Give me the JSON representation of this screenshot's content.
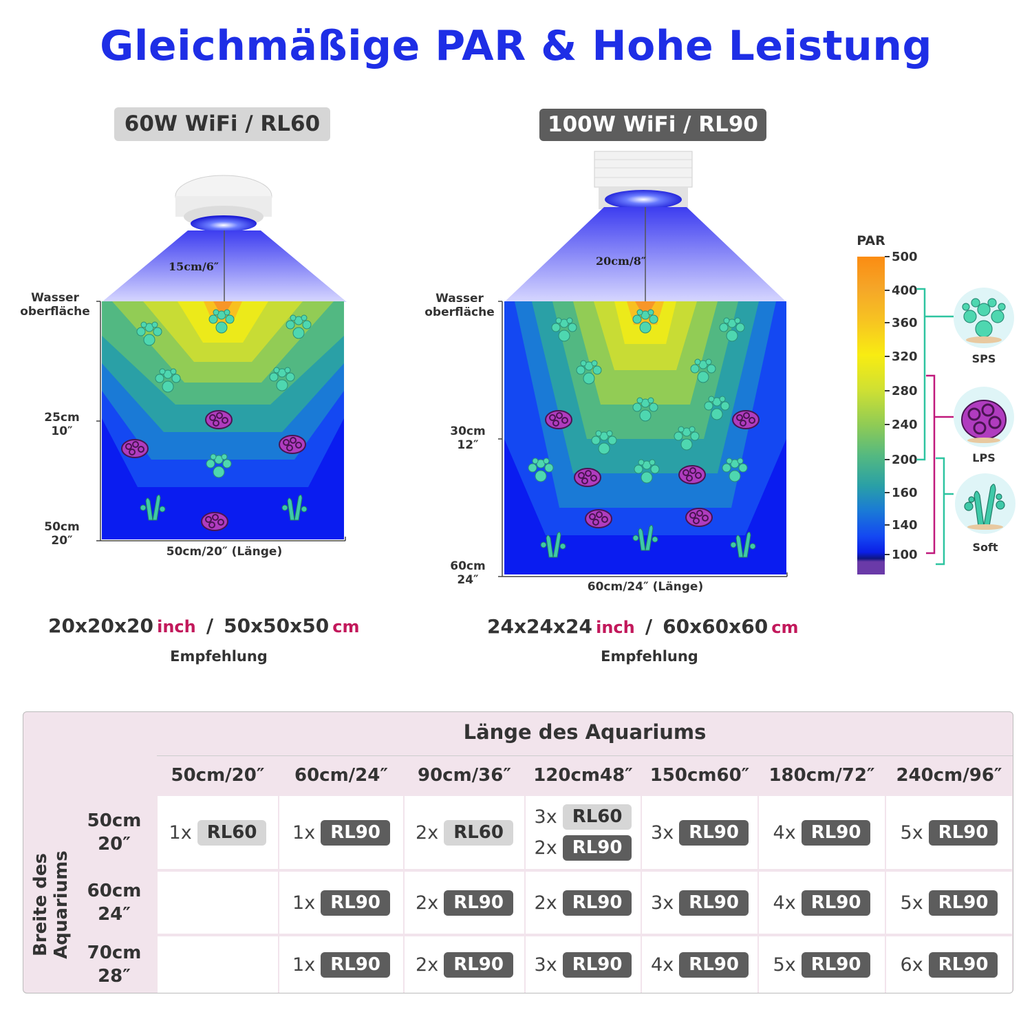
{
  "title": "Gleichmäßige PAR & Hohe Leistung",
  "left": {
    "model_label": "60W WiFi / RL60",
    "distance": "15cm/6″",
    "surface_line1": "Wasser",
    "surface_line2": "oberfläche",
    "mid_depth_cm": "25cm",
    "mid_depth_in": "10″",
    "bottom_depth_cm": "50cm",
    "bottom_depth_in": "20″",
    "length_label": "50cm/20″ (Länge)",
    "dims_in": "20x20x20",
    "unit_in": "inch",
    "sep": "/",
    "dims_cm": "50x50x50",
    "unit_cm": "cm",
    "recommendation": "Empfehlung"
  },
  "right": {
    "model_label": "100W WiFi / RL90",
    "distance": "20cm/8″",
    "surface_line1": "Wasser",
    "surface_line2": "oberfläche",
    "mid_depth_cm": "30cm",
    "mid_depth_in": "12″",
    "bottom_depth_cm": "60cm",
    "bottom_depth_in": "24″",
    "length_label": "60cm/24″ (Länge)",
    "dims_in": "24x24x24",
    "unit_in": "inch",
    "sep": "/",
    "dims_cm": "60x60x60",
    "unit_cm": "cm",
    "recommendation": "Empfehlung"
  },
  "par_scale": {
    "title": "PAR",
    "ticks": [
      "500",
      "400",
      "360",
      "320",
      "280",
      "240",
      "200",
      "160",
      "140",
      "100"
    ],
    "zones": [
      {
        "label": "SPS",
        "icon": "sps-coral-icon",
        "color": "#2ec4a0"
      },
      {
        "label": "LPS",
        "icon": "lps-coral-icon",
        "color": "#c0197c"
      },
      {
        "label": "Soft",
        "icon": "soft-coral-icon",
        "color": "#2ec4a0"
      }
    ]
  },
  "table": {
    "col_group": "Länge des Aquariums",
    "row_group": "Breite des Aquariums",
    "columns": [
      "50cm/20″",
      "60cm/24″",
      "90cm/36″",
      "120cm48″",
      "150cm60″",
      "180cm/72″",
      "240cm/96″"
    ],
    "rows": [
      {
        "w1": "50cm",
        "w2": "20″",
        "cells": [
          [
            {
              "n": "1x",
              "m": "RL60"
            }
          ],
          [
            {
              "n": "1x",
              "m": "RL90"
            }
          ],
          [
            {
              "n": "2x",
              "m": "RL60"
            }
          ],
          [
            {
              "n": "3x",
              "m": "RL60"
            },
            {
              "n": "2x",
              "m": "RL90"
            }
          ],
          [
            {
              "n": "3x",
              "m": "RL90"
            }
          ],
          [
            {
              "n": "4x",
              "m": "RL90"
            }
          ],
          [
            {
              "n": "5x",
              "m": "RL90"
            }
          ]
        ]
      },
      {
        "w1": "60cm",
        "w2": "24″",
        "cells": [
          [],
          [
            {
              "n": "1x",
              "m": "RL90"
            }
          ],
          [
            {
              "n": "2x",
              "m": "RL90"
            }
          ],
          [
            {
              "n": "2x",
              "m": "RL90"
            }
          ],
          [
            {
              "n": "3x",
              "m": "RL90"
            }
          ],
          [
            {
              "n": "4x",
              "m": "RL90"
            }
          ],
          [
            {
              "n": "5x",
              "m": "RL90"
            }
          ]
        ]
      },
      {
        "w1": "70cm",
        "w2": "28″",
        "cells": [
          [],
          [
            {
              "n": "1x",
              "m": "RL90"
            }
          ],
          [
            {
              "n": "2x",
              "m": "RL90"
            }
          ],
          [
            {
              "n": "3x",
              "m": "RL90"
            }
          ],
          [
            {
              "n": "4x",
              "m": "RL90"
            }
          ],
          [
            {
              "n": "5x",
              "m": "RL90"
            }
          ],
          [
            {
              "n": "6x",
              "m": "RL90"
            }
          ]
        ]
      }
    ]
  },
  "colors": {
    "title": "#1e2ee6",
    "unit_accent": "#c2185b",
    "tag_light": "#d6d6d6",
    "tag_dark": "#5d5d5d",
    "table_bg": "#f2e4ec"
  }
}
